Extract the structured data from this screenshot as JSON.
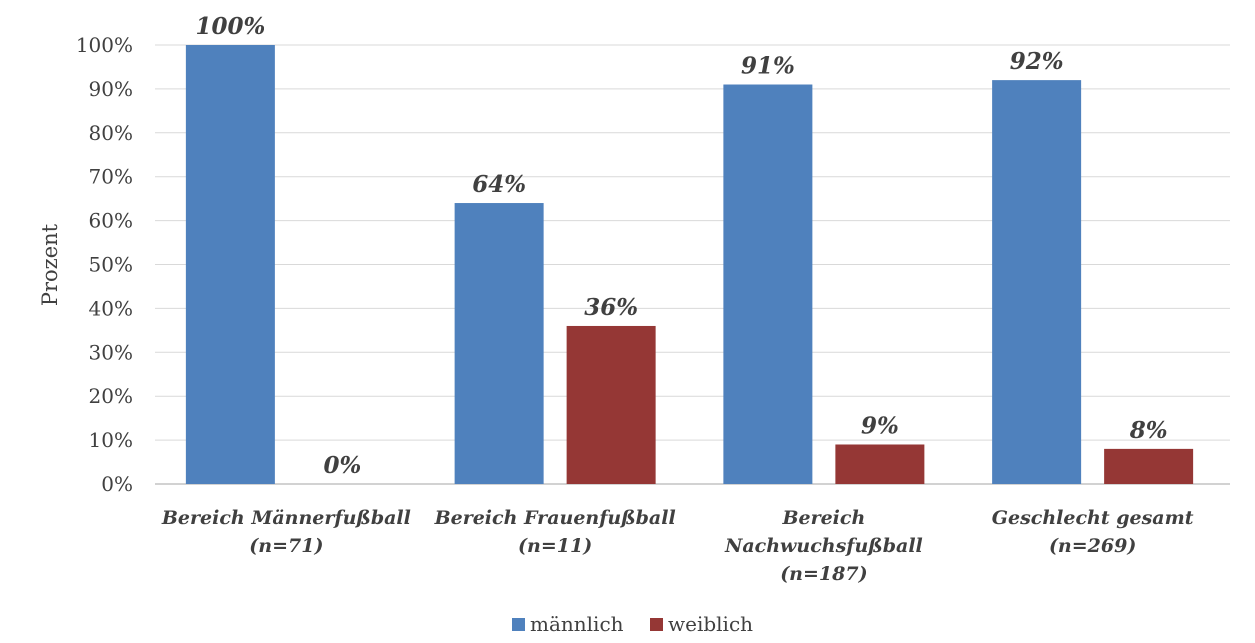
{
  "chart_data": {
    "type": "bar",
    "categories": [
      [
        "Bereich Männerfußball",
        "(n=71)"
      ],
      [
        "Bereich Frauenfußball",
        "(n=11)"
      ],
      [
        "Bereich",
        "Nachwuchsfußball",
        "(n=187)"
      ],
      [
        "Geschlecht gesamt",
        "(n=269)"
      ]
    ],
    "series": [
      {
        "name": "männlich",
        "values": [
          100,
          64,
          91,
          92
        ],
        "labels": [
          "100%",
          "64%",
          "91%",
          "92%"
        ],
        "color": "#4f81bd"
      },
      {
        "name": "weiblich",
        "values": [
          0,
          36,
          9,
          8
        ],
        "labels": [
          "0%",
          "36%",
          "9%",
          "8%"
        ],
        "color": "#953735"
      }
    ],
    "ylabel": "Prozent",
    "ylim": [
      0,
      100
    ],
    "yticks": [
      "0%",
      "10%",
      "20%",
      "30%",
      "40%",
      "50%",
      "60%",
      "70%",
      "80%",
      "90%",
      "100%"
    ],
    "grid": true,
    "legend": "bottom"
  }
}
